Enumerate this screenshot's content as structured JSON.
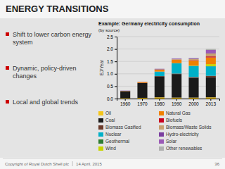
{
  "title": "ENERGY TRANSITIONS",
  "text": [
    "Shift to lower carbon energy system",
    "Dynamic, policy-driven changes",
    "Local and global trends"
  ],
  "footer": [
    "Copyright of Royal Dutch Shell plc",
    "14 April, 2015",
    "36"
  ],
  "chart_data": {
    "type": "bar",
    "title": "Example: Germany electricity consumption",
    "subtitle": "(by source)",
    "ylabel": "EJ/Year",
    "stacked": true,
    "grid": true,
    "legend": "bottom",
    "categories": [
      "1960",
      "1970",
      "1980",
      "1990",
      "2000",
      "2013"
    ],
    "ylim": [
      0,
      2.5
    ],
    "yticks": [
      {
        "value": 0.0,
        "label": "0.0"
      },
      0.5,
      {
        "value": 1.0,
        "label": "1.0"
      },
      1.5,
      {
        "value": 2.0,
        "label": "2.0"
      },
      2.5
    ],
    "series": [
      {
        "name": "Oil",
        "color": "#f5c518",
        "values": [
          0.02,
          0.03,
          0.05,
          0.04,
          0.04,
          0.05
        ]
      },
      {
        "name": "Coal",
        "color": "#1a1a1a",
        "values": [
          0.28,
          0.6,
          0.85,
          0.95,
          0.8,
          0.8
        ]
      },
      {
        "name": "Biomass Gasified",
        "color": "#6b3a2a",
        "values": [
          0.0,
          0.0,
          0.01,
          0.02,
          0.03,
          0.07
        ]
      },
      {
        "name": "Nuclear",
        "color": "#00b0c8",
        "values": [
          0.0,
          0.0,
          0.18,
          0.42,
          0.45,
          0.38
        ]
      },
      {
        "name": "Geothermal",
        "color": "#2e7d32",
        "values": [
          0.0,
          0.0,
          0.0,
          0.0,
          0.0,
          0.01
        ]
      },
      {
        "name": "Wind",
        "color": "#c8d400",
        "values": [
          0.0,
          0.0,
          0.0,
          0.0,
          0.01,
          0.08
        ]
      },
      {
        "name": "Natural Gas",
        "color": "#f08000",
        "values": [
          0.01,
          0.04,
          0.08,
          0.13,
          0.2,
          0.27
        ]
      },
      {
        "name": "Biofuels",
        "color": "#c8001e",
        "values": [
          0.0,
          0.0,
          0.0,
          0.01,
          0.02,
          0.04
        ]
      },
      {
        "name": "Biomass/Waste Solids",
        "color": "#c8a070",
        "values": [
          0.0,
          0.0,
          0.01,
          0.02,
          0.05,
          0.12
        ]
      },
      {
        "name": "Hydro-electricity",
        "color": "#7b3fa0",
        "values": [
          0.01,
          0.01,
          0.02,
          0.02,
          0.02,
          0.02
        ]
      },
      {
        "name": "Solar",
        "color": "#9b59b6",
        "values": [
          0.0,
          0.0,
          0.0,
          0.0,
          0.01,
          0.12
        ]
      },
      {
        "name": "Other renewables",
        "color": "#b0b0b0",
        "values": [
          0.0,
          0.0,
          0.0,
          0.0,
          0.01,
          0.04
        ]
      }
    ]
  }
}
